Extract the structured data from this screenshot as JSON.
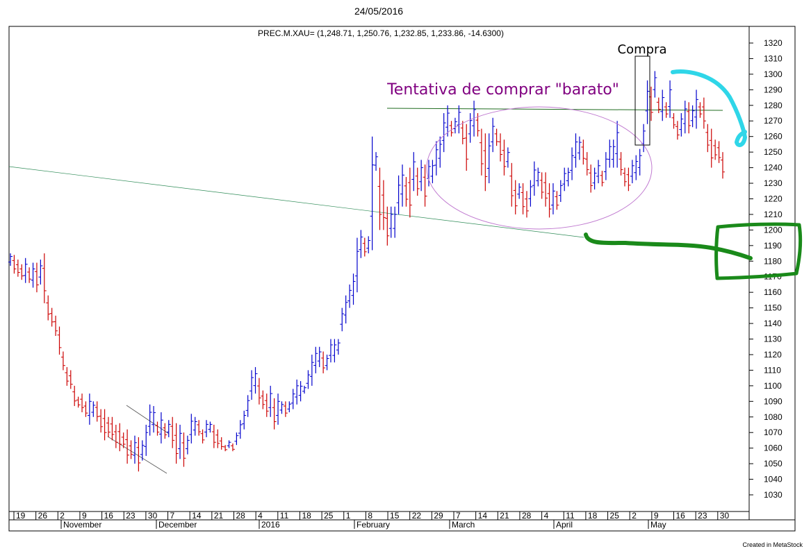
{
  "page": {
    "date": "24/05/2016",
    "footer": "Created in MetaStock"
  },
  "chart_data": {
    "type": "ohlc",
    "title": "PREC.M.XAU= (1,248.71, 1,250.76, 1,232.85, 1,233.86, -14.6300)",
    "xlabel": "",
    "ylabel": "",
    "ylim": [
      1020,
      1327
    ],
    "yticks": [
      1030,
      1040,
      1050,
      1060,
      1070,
      1080,
      1090,
      1100,
      1110,
      1120,
      1130,
      1140,
      1150,
      1160,
      1170,
      1180,
      1190,
      1200,
      1210,
      1220,
      1230,
      1240,
      1250,
      1260,
      1270,
      1280,
      1290,
      1300,
      1310,
      1320
    ],
    "x_day_ticks": [
      "19",
      "26",
      "2",
      "9",
      "16",
      "23",
      "30",
      "7",
      "14",
      "21",
      "28",
      "4",
      "11",
      "18",
      "25",
      "1",
      "8",
      "15",
      "22",
      "29",
      "7",
      "14",
      "21",
      "28",
      "4",
      "11",
      "18",
      "25",
      "2",
      "9",
      "16",
      "23",
      "30"
    ],
    "x_month_labels": [
      "November",
      "December",
      "2016",
      "February",
      "March",
      "April",
      "May"
    ],
    "grid": false,
    "annotations": [
      {
        "text": "Compra",
        "color": "#000000"
      },
      {
        "text": "Tentativa de comprar \"barato\"",
        "color": "#800080"
      }
    ],
    "series": [
      {
        "values": [
          [
            1185,
            1177
          ],
          [
            1184,
            1172
          ],
          [
            1181,
            1170
          ],
          [
            1178,
            1168
          ],
          [
            1182,
            1166
          ],
          [
            1176,
            1166
          ],
          [
            1179,
            1163
          ],
          [
            1179,
            1160
          ],
          [
            1181,
            1165
          ],
          [
            1185,
            1153
          ],
          [
            1158,
            1142
          ],
          [
            1150,
            1138
          ],
          [
            1145,
            1132
          ],
          [
            1138,
            1120
          ],
          [
            1122,
            1110
          ],
          [
            1112,
            1100
          ],
          [
            1110,
            1098
          ],
          [
            1100,
            1087
          ],
          [
            1093,
            1086
          ],
          [
            1095,
            1083
          ],
          [
            1090,
            1080
          ],
          [
            1095,
            1075
          ],
          [
            1090,
            1080
          ],
          [
            1090,
            1077
          ],
          [
            1085,
            1070
          ],
          [
            1085,
            1065
          ],
          [
            1080,
            1067
          ],
          [
            1080,
            1065
          ],
          [
            1075,
            1060
          ],
          [
            1076,
            1058
          ],
          [
            1070,
            1060
          ],
          [
            1072,
            1050
          ],
          [
            1065,
            1053
          ],
          [
            1068,
            1050
          ],
          [
            1067,
            1045
          ],
          [
            1065,
            1052
          ],
          [
            1075,
            1055
          ],
          [
            1088,
            1068
          ],
          [
            1087,
            1070
          ],
          [
            1077,
            1068
          ],
          [
            1083,
            1063
          ],
          [
            1076,
            1066
          ],
          [
            1078,
            1067
          ],
          [
            1080,
            1060
          ],
          [
            1076,
            1050
          ],
          [
            1075,
            1053
          ],
          [
            1070,
            1048
          ],
          [
            1068,
            1056
          ],
          [
            1082,
            1063
          ],
          [
            1080,
            1068
          ],
          [
            1078,
            1068
          ],
          [
            1072,
            1063
          ],
          [
            1078,
            1067
          ],
          [
            1077,
            1070
          ],
          [
            1075,
            1060
          ],
          [
            1072,
            1060
          ],
          [
            1067,
            1059
          ],
          [
            1062,
            1058
          ],
          [
            1065,
            1060
          ],
          [
            1063,
            1058
          ],
          [
            1070,
            1062
          ],
          [
            1078,
            1066
          ],
          [
            1084,
            1072
          ],
          [
            1094,
            1080
          ],
          [
            1110,
            1091
          ],
          [
            1112,
            1095
          ],
          [
            1105,
            1088
          ],
          [
            1097,
            1085
          ],
          [
            1095,
            1080
          ],
          [
            1100,
            1080
          ],
          [
            1092,
            1072
          ],
          [
            1095,
            1075
          ],
          [
            1090,
            1082
          ],
          [
            1090,
            1080
          ],
          [
            1090,
            1083
          ],
          [
            1098,
            1085
          ],
          [
            1104,
            1088
          ],
          [
            1103,
            1090
          ],
          [
            1100,
            1095
          ],
          [
            1110,
            1098
          ],
          [
            1120,
            1100
          ],
          [
            1125,
            1108
          ],
          [
            1125,
            1112
          ],
          [
            1122,
            1108
          ],
          [
            1120,
            1110
          ],
          [
            1130,
            1115
          ],
          [
            1130,
            1115
          ],
          [
            1130,
            1120
          ],
          [
            1150,
            1135
          ],
          [
            1158,
            1140
          ],
          [
            1165,
            1150
          ],
          [
            1172,
            1152
          ],
          [
            1195,
            1160
          ],
          [
            1200,
            1182
          ],
          [
            1195,
            1183
          ],
          [
            1196,
            1185
          ],
          [
            1260,
            1187
          ],
          [
            1250,
            1238
          ],
          [
            1240,
            1200
          ],
          [
            1232,
            1200
          ],
          [
            1215,
            1190
          ],
          [
            1215,
            1195
          ],
          [
            1215,
            1195
          ],
          [
            1235,
            1210
          ],
          [
            1242,
            1215
          ],
          [
            1234,
            1215
          ],
          [
            1240,
            1208
          ],
          [
            1250,
            1225
          ],
          [
            1240,
            1222
          ],
          [
            1245,
            1225
          ],
          [
            1242,
            1215
          ],
          [
            1245,
            1228
          ],
          [
            1245,
            1230
          ],
          [
            1257,
            1235
          ],
          [
            1260,
            1240
          ],
          [
            1275,
            1250
          ],
          [
            1280,
            1260
          ],
          [
            1270,
            1260
          ],
          [
            1272,
            1262
          ],
          [
            1280,
            1262
          ],
          [
            1270,
            1255
          ],
          [
            1268,
            1238
          ],
          [
            1275,
            1256
          ],
          [
            1283,
            1260
          ],
          [
            1275,
            1260
          ],
          [
            1265,
            1235
          ],
          [
            1262,
            1225
          ],
          [
            1262,
            1230
          ],
          [
            1272,
            1250
          ],
          [
            1265,
            1254
          ],
          [
            1262,
            1244
          ],
          [
            1258,
            1235
          ],
          [
            1253,
            1240
          ],
          [
            1243,
            1215
          ],
          [
            1232,
            1210
          ],
          [
            1230,
            1220
          ],
          [
            1230,
            1210
          ],
          [
            1225,
            1208
          ],
          [
            1232,
            1215
          ],
          [
            1244,
            1222
          ],
          [
            1240,
            1228
          ],
          [
            1237,
            1220
          ],
          [
            1237,
            1215
          ],
          [
            1230,
            1208
          ],
          [
            1230,
            1210
          ],
          [
            1225,
            1213
          ],
          [
            1232,
            1218
          ],
          [
            1240,
            1225
          ],
          [
            1240,
            1228
          ],
          [
            1253,
            1232
          ],
          [
            1262,
            1240
          ],
          [
            1260,
            1245
          ],
          [
            1258,
            1242
          ],
          [
            1250,
            1235
          ],
          [
            1242,
            1224
          ],
          [
            1240,
            1226
          ],
          [
            1245,
            1230
          ],
          [
            1238,
            1228
          ],
          [
            1250,
            1232
          ],
          [
            1258,
            1240
          ],
          [
            1258,
            1240
          ],
          [
            1270,
            1240
          ],
          [
            1250,
            1235
          ],
          [
            1240,
            1228
          ],
          [
            1240,
            1225
          ],
          [
            1245,
            1230
          ],
          [
            1248,
            1232
          ],
          [
            1252,
            1235
          ],
          [
            1268,
            1250
          ],
          [
            1296,
            1268
          ],
          [
            1292,
            1270
          ],
          [
            1302,
            1285
          ],
          [
            1285,
            1275
          ],
          [
            1290,
            1270
          ],
          [
            1282,
            1272
          ],
          [
            1296,
            1272
          ],
          [
            1275,
            1265
          ],
          [
            1270,
            1258
          ],
          [
            1275,
            1260
          ],
          [
            1283,
            1262
          ],
          [
            1282,
            1262
          ],
          [
            1280,
            1266
          ],
          [
            1290,
            1265
          ],
          [
            1282,
            1272
          ],
          [
            1285,
            1265
          ],
          [
            1268,
            1250
          ],
          [
            1265,
            1240
          ],
          [
            1258,
            1245
          ],
          [
            1257,
            1243
          ],
          [
            1250,
            1233
          ]
        ]
      }
    ]
  }
}
